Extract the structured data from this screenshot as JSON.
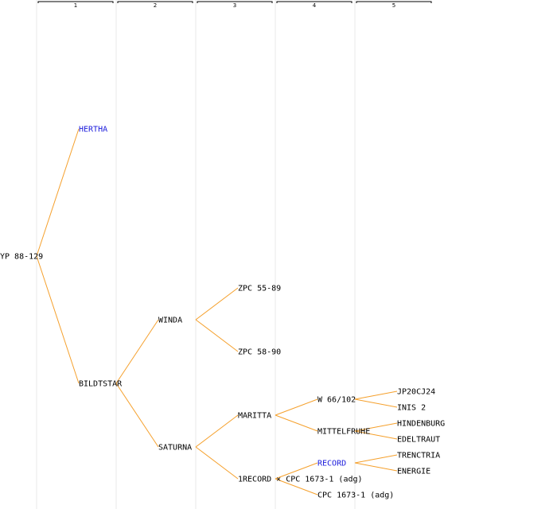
{
  "columns": [
    "1",
    "2",
    "3",
    "4",
    "5"
  ],
  "colors": {
    "edge": "#f5a02c",
    "link": "#1a1adb",
    "text": "#000000",
    "guide": "#e9e9e9"
  },
  "nodes": [
    {
      "id": "root",
      "label": "YP 88-129",
      "gen": 0,
      "row": 8,
      "link": false
    },
    {
      "id": "n1",
      "label": "HERTHA",
      "gen": 1,
      "row": 4,
      "link": true,
      "parent": "root"
    },
    {
      "id": "n2",
      "label": "BILDTSTAR",
      "gen": 1,
      "row": 12,
      "link": false,
      "parent": "root"
    },
    {
      "id": "n3",
      "label": "WINDA",
      "gen": 2,
      "row": 10,
      "link": false,
      "parent": "n2"
    },
    {
      "id": "n4",
      "label": "SATURNA",
      "gen": 2,
      "row": 14,
      "link": false,
      "parent": "n2"
    },
    {
      "id": "n5",
      "label": "ZPC 55-89",
      "gen": 3,
      "row": 9,
      "link": false,
      "parent": "n3"
    },
    {
      "id": "n6",
      "label": "ZPC 58-90",
      "gen": 3,
      "row": 11,
      "link": false,
      "parent": "n3"
    },
    {
      "id": "n7",
      "label": "MARITTA",
      "gen": 3,
      "row": 13,
      "link": false,
      "parent": "n4"
    },
    {
      "id": "n8",
      "label": "1RECORD × CPC 1673-1 (adg)",
      "gen": 3,
      "row": 15,
      "link": false,
      "parent": "n4"
    },
    {
      "id": "n9",
      "label": "W 66/102",
      "gen": 4,
      "row": 12.5,
      "link": false,
      "parent": "n7"
    },
    {
      "id": "n10",
      "label": "MITTELFRUHE",
      "gen": 4,
      "row": 13.5,
      "link": false,
      "parent": "n7"
    },
    {
      "id": "n11",
      "label": "RECORD",
      "gen": 4,
      "row": 14.5,
      "link": true,
      "parent": "n8"
    },
    {
      "id": "n12",
      "label": "CPC 1673-1 (adg)",
      "gen": 4,
      "row": 15.5,
      "link": false,
      "parent": "n8"
    },
    {
      "id": "n13",
      "label": "JP20CJ24",
      "gen": 5,
      "row": 12.25,
      "link": false,
      "parent": "n9"
    },
    {
      "id": "n14",
      "label": "INIS 2",
      "gen": 5,
      "row": 12.75,
      "link": false,
      "parent": "n9"
    },
    {
      "id": "n15",
      "label": "HINDENBURG",
      "gen": 5,
      "row": 13.25,
      "link": false,
      "parent": "n10"
    },
    {
      "id": "n16",
      "label": "EDELTRAUT",
      "gen": 5,
      "row": 13.75,
      "link": false,
      "parent": "n10"
    },
    {
      "id": "n17",
      "label": "TRENCTRIA",
      "gen": 5,
      "row": 14.25,
      "link": false,
      "parent": "n11"
    },
    {
      "id": "n18",
      "label": "ENERGIE",
      "gen": 5,
      "row": 14.75,
      "link": false,
      "parent": "n11"
    }
  ]
}
